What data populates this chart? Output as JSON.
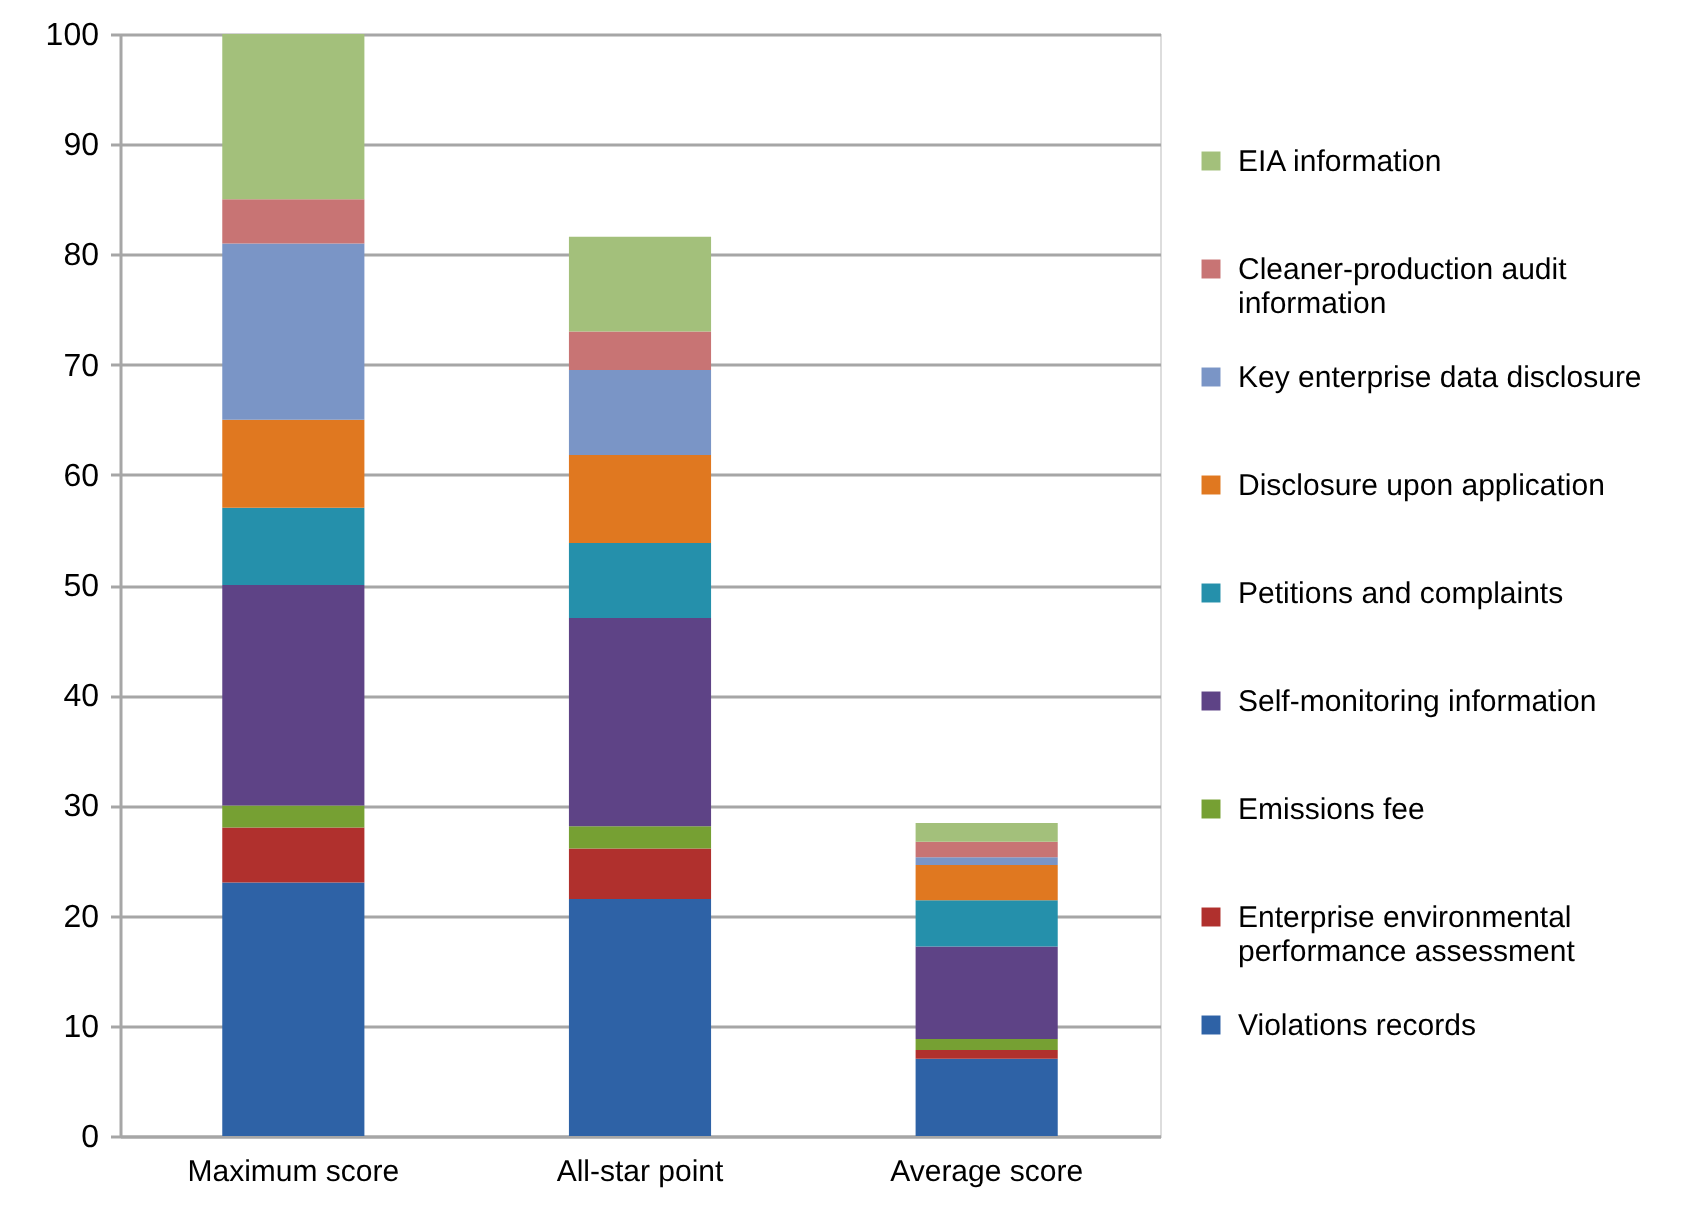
{
  "chart_data": {
    "type": "bar",
    "stacked": true,
    "categories": [
      "Maximum score",
      "All-star point",
      "Average score"
    ],
    "series": [
      {
        "name": "Violations records",
        "color": "#2e62a6",
        "values": [
          23,
          21.5,
          7.0
        ]
      },
      {
        "name": "Enterprise environmental performance assessment",
        "color": "#b0302d",
        "values": [
          5,
          4.6,
          0.8
        ]
      },
      {
        "name": "Emissions fee",
        "color": "#76a033",
        "values": [
          2,
          2.0,
          1.0
        ]
      },
      {
        "name": "Self-monitoring information",
        "color": "#5e4386",
        "values": [
          20,
          18.9,
          8.4
        ]
      },
      {
        "name": "Petitions and complaints",
        "color": "#2590ab",
        "values": [
          7,
          6.8,
          4.2
        ]
      },
      {
        "name": "Disclosure upon application",
        "color": "#e07820",
        "values": [
          8,
          8.0,
          3.2
        ]
      },
      {
        "name": "Key enterprise data disclosure",
        "color": "#7a95c6",
        "values": [
          16,
          7.7,
          0.7
        ]
      },
      {
        "name": "Cleaner-production audit information",
        "color": "#c87474",
        "values": [
          4,
          3.5,
          1.4
        ]
      },
      {
        "name": "EIA   information",
        "color": "#a3c07b",
        "values": [
          15,
          8.6,
          1.7
        ]
      }
    ],
    "ylim": [
      0,
      100
    ],
    "yticks": [
      0,
      10,
      20,
      30,
      40,
      50,
      60,
      70,
      80,
      90,
      100
    ],
    "grid": "y",
    "legend": "right"
  }
}
